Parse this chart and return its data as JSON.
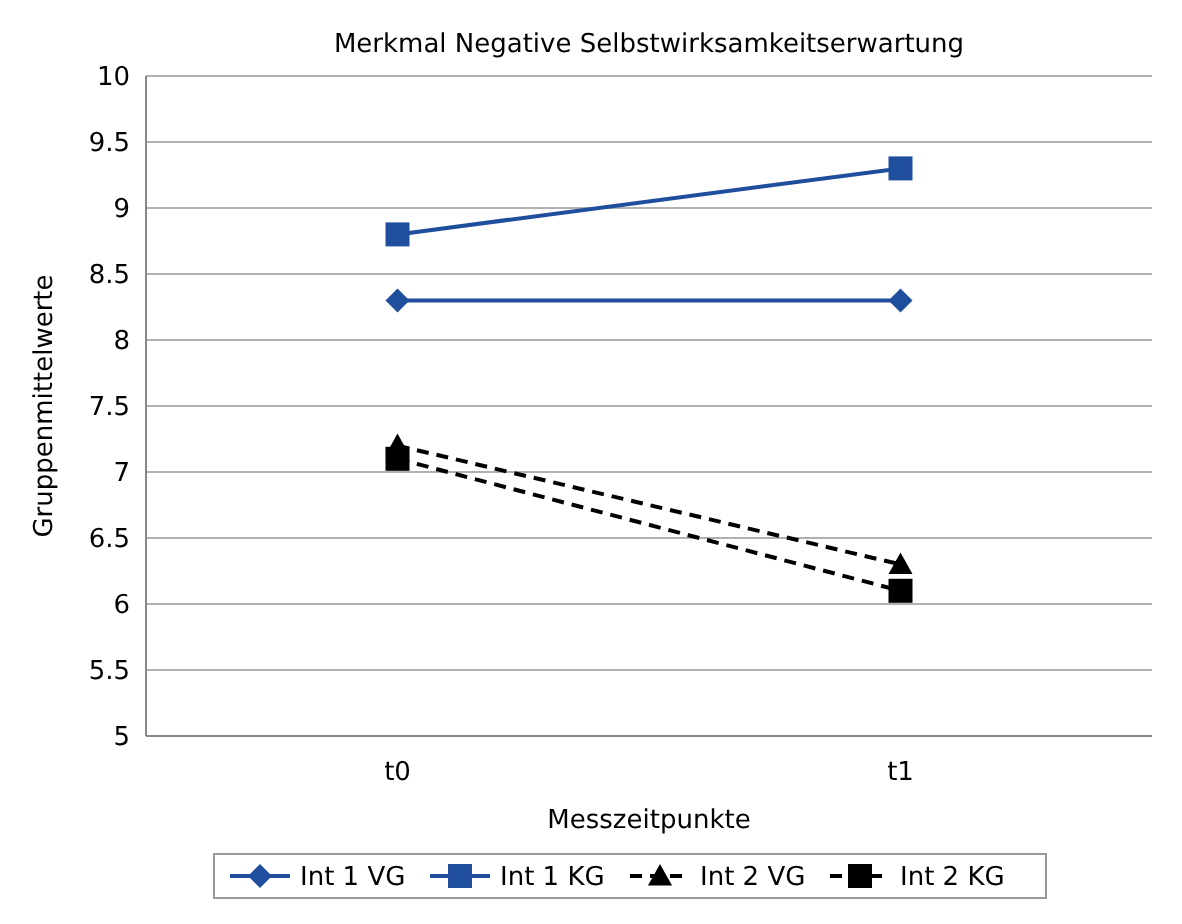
{
  "chart_data": {
    "type": "line",
    "title": "Merkmal Negative Selbstwirksamkeitserwartung",
    "xlabel": "Messzeitpunkte",
    "ylabel": "Gruppenmittelwerte",
    "categories": [
      "t0",
      "t1"
    ],
    "ylim": [
      5,
      10
    ],
    "yticks": [
      5,
      5.5,
      6,
      6.5,
      7,
      7.5,
      8,
      8.5,
      9,
      9.5,
      10
    ],
    "grid": "y",
    "legend": "bottom",
    "series": [
      {
        "name": "Int 1 VG",
        "color": "#1f4e9c",
        "values": [
          8.3,
          8.3
        ],
        "marker": "diamond",
        "line_style": "solid"
      },
      {
        "name": "Int 1 KG",
        "color": "#1f4e9c",
        "values": [
          8.8,
          9.3
        ],
        "marker": "square",
        "line_style": "solid"
      },
      {
        "name": "Int 2 VG",
        "color": "#000000",
        "values": [
          7.2,
          6.3
        ],
        "marker": "triangle",
        "line_style": "dashed"
      },
      {
        "name": "Int 2 KG",
        "color": "#000000",
        "values": [
          7.1,
          6.1
        ],
        "marker": "square",
        "line_style": "dashed"
      }
    ]
  }
}
